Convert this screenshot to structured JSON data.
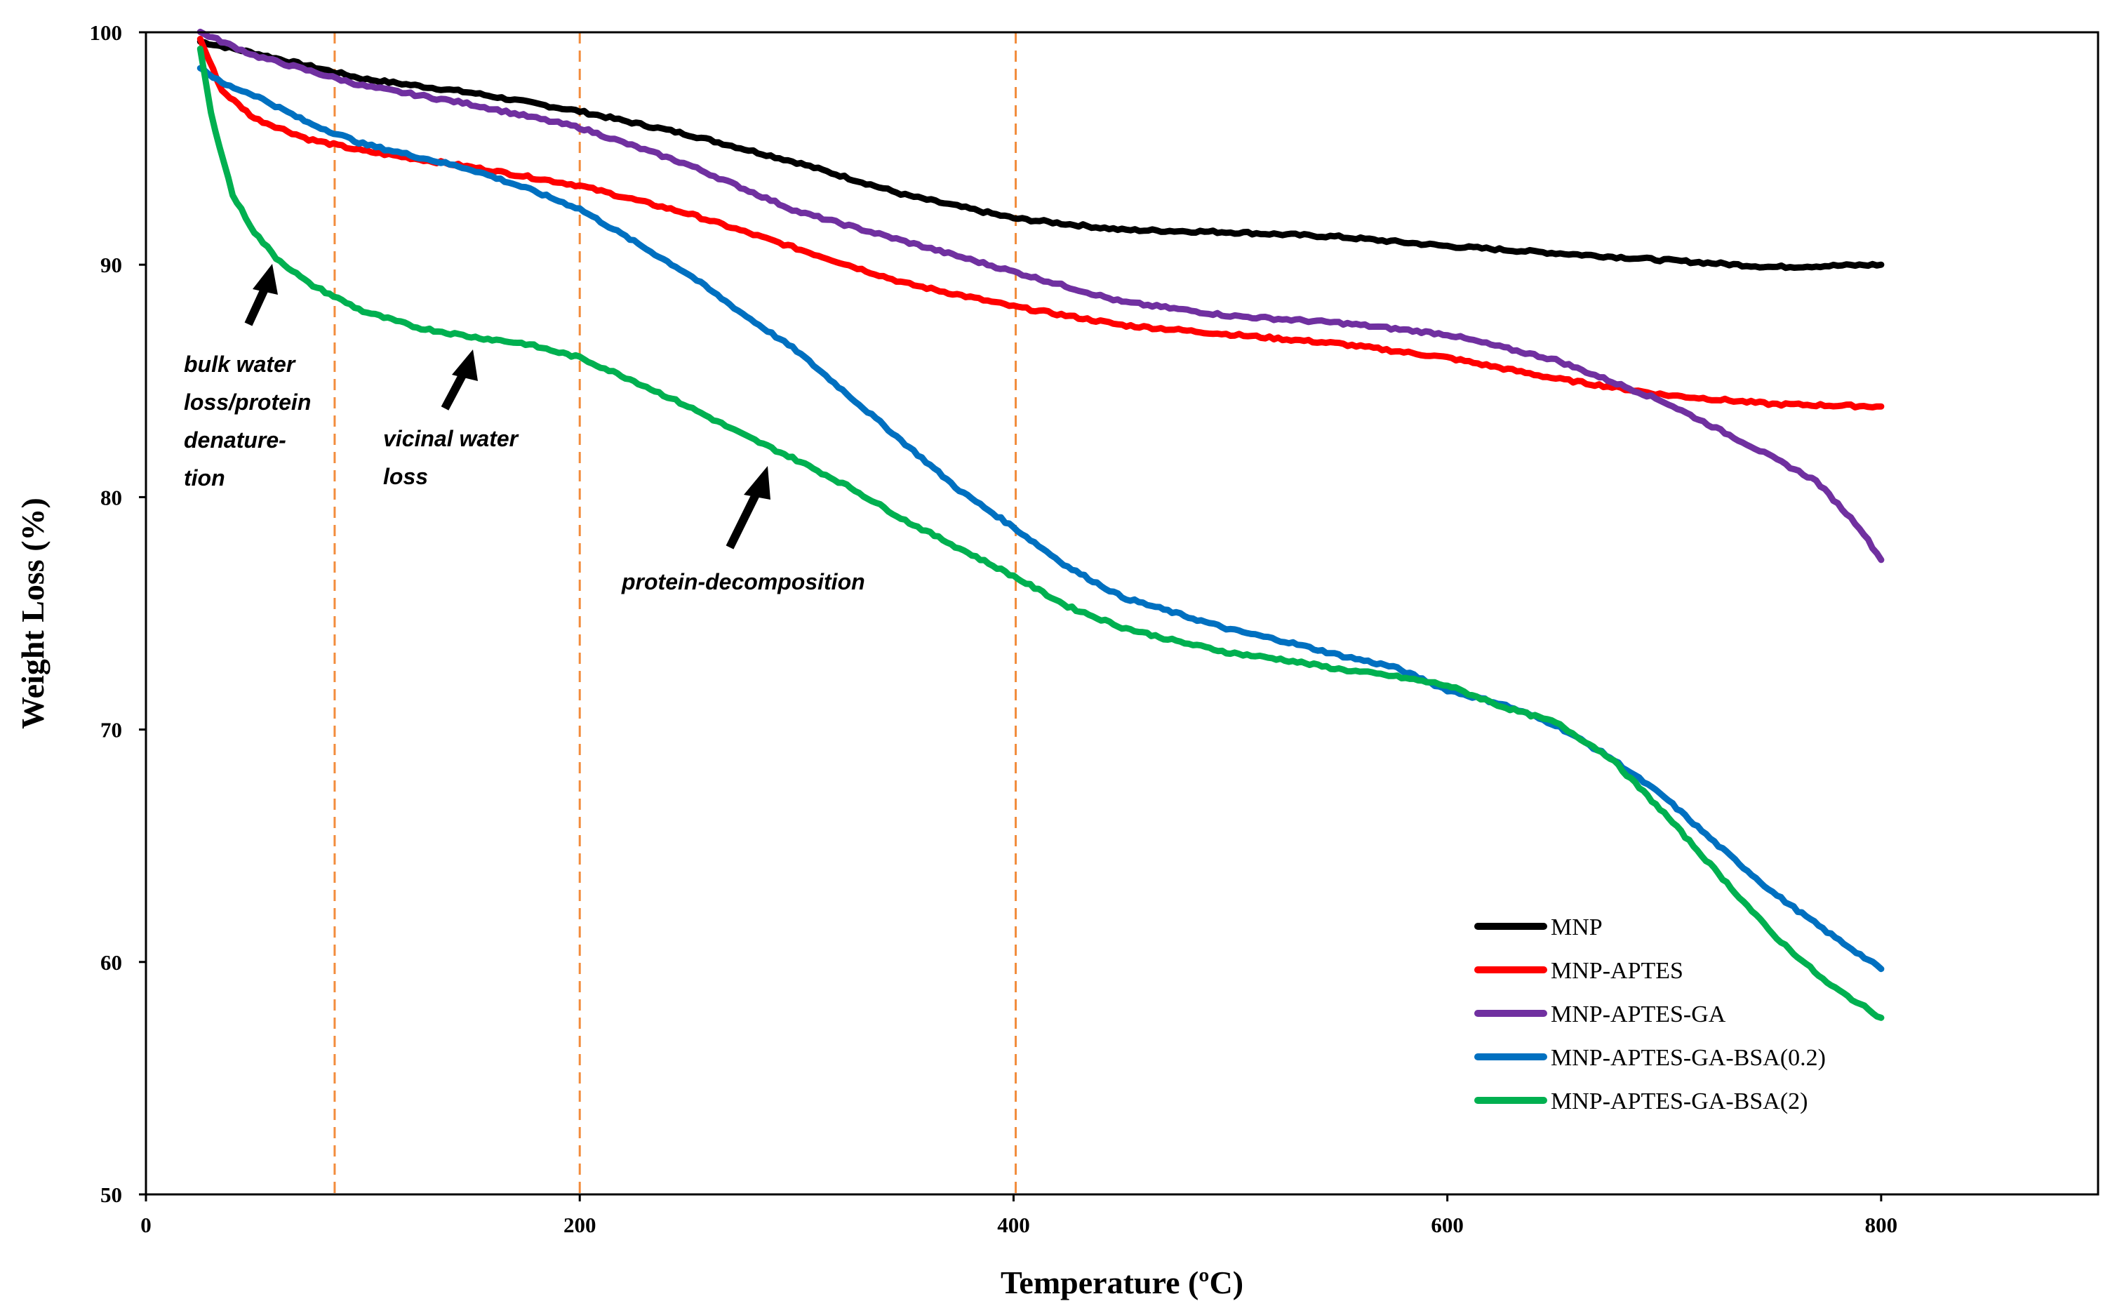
{
  "chart_data": {
    "type": "line",
    "title": "",
    "xlabel": "Temperature (ºC)",
    "ylabel": "Weight Loss (%)",
    "xlim": [
      0,
      900
    ],
    "ylim": [
      50,
      100
    ],
    "xticks": [
      0,
      200,
      400,
      600,
      800
    ],
    "yticks": [
      50,
      60,
      70,
      80,
      90,
      100
    ],
    "xtick_labels": [
      "0",
      "200",
      "400",
      "600",
      "800"
    ],
    "ytick_labels": [
      "50",
      "60",
      "70",
      "80",
      "90",
      "100"
    ],
    "grid": false,
    "legend_position": "bottom-right",
    "reference_lines": [
      {
        "orientation": "vertical",
        "x": 87,
        "style": "dashed",
        "color": "#f28c3c"
      },
      {
        "orientation": "vertical",
        "x": 200,
        "style": "dashed",
        "color": "#f28c3c"
      },
      {
        "orientation": "vertical",
        "x": 401,
        "style": "dashed",
        "color": "#f28c3c"
      }
    ],
    "annotations": [
      {
        "lines": [
          "bulk water",
          "loss/protein",
          "denature-",
          "tion"
        ],
        "arrow_to": [
          57,
          90.5
        ]
      },
      {
        "lines": [
          "vicinal water",
          "loss"
        ],
        "arrow_to": [
          150,
          86.5
        ]
      },
      {
        "lines": [
          "protein-decomposition"
        ],
        "arrow_to": [
          287,
          81.5
        ]
      }
    ],
    "series": [
      {
        "name": "MNP",
        "color": "#000000",
        "x": [
          25,
          50,
          100,
          150,
          200,
          250,
          300,
          350,
          400,
          450,
          500,
          550,
          600,
          650,
          700,
          750,
          800
        ],
        "y": [
          99.6,
          99.1,
          98.0,
          97.4,
          96.6,
          95.6,
          94.4,
          93.0,
          92.0,
          91.5,
          91.4,
          91.2,
          90.8,
          90.5,
          90.2,
          89.9,
          90.0
        ]
      },
      {
        "name": "MNP-APTES",
        "color": "#ff0000",
        "x": [
          25,
          35,
          50,
          75,
          100,
          150,
          200,
          250,
          300,
          350,
          400,
          450,
          500,
          550,
          600,
          650,
          700,
          750,
          800
        ],
        "y": [
          99.7,
          97.5,
          96.3,
          95.4,
          94.9,
          94.2,
          93.4,
          92.2,
          90.7,
          89.2,
          88.2,
          87.4,
          87.0,
          86.6,
          86.0,
          85.1,
          84.4,
          84.0,
          83.9
        ]
      },
      {
        "name": "MNP-APTES-GA",
        "color": "#7030a0",
        "x": [
          25,
          50,
          100,
          150,
          200,
          250,
          300,
          350,
          400,
          450,
          500,
          550,
          600,
          650,
          700,
          740,
          770,
          790,
          800
        ],
        "y": [
          100.0,
          99.0,
          97.7,
          96.9,
          95.9,
          94.3,
          92.3,
          91.0,
          89.7,
          88.4,
          87.8,
          87.5,
          87.0,
          85.9,
          84.1,
          82.2,
          80.7,
          78.7,
          77.3
        ]
      },
      {
        "name": "MNP-APTES-GA-BSA(0.2)",
        "color": "#0070c0",
        "x": [
          25,
          35,
          50,
          75,
          100,
          150,
          175,
          200,
          225,
          250,
          275,
          300,
          325,
          350,
          375,
          400,
          425,
          450,
          475,
          500,
          525,
          550,
          575,
          600,
          625,
          650,
          675,
          700,
          725,
          750,
          775,
          800
        ],
        "y": [
          98.5,
          97.8,
          97.3,
          96.1,
          95.2,
          94.1,
          93.3,
          92.4,
          91.0,
          89.6,
          87.9,
          86.3,
          84.3,
          82.3,
          80.3,
          78.7,
          77.0,
          75.7,
          75.0,
          74.3,
          73.8,
          73.2,
          72.7,
          71.7,
          71.1,
          70.2,
          68.8,
          67.1,
          65.0,
          63.0,
          61.3,
          59.7
        ]
      },
      {
        "name": "MNP-APTES-GA-BSA(2)",
        "color": "#00b050",
        "x": [
          25,
          30,
          40,
          50,
          60,
          75,
          100,
          125,
          150,
          175,
          200,
          225,
          250,
          275,
          300,
          325,
          350,
          375,
          400,
          425,
          450,
          475,
          500,
          525,
          550,
          575,
          600,
          625,
          650,
          675,
          700,
          725,
          750,
          775,
          800
        ],
        "y": [
          99.3,
          96.5,
          93.0,
          91.4,
          90.3,
          89.2,
          88.0,
          87.3,
          86.9,
          86.6,
          86.0,
          85.0,
          83.9,
          82.7,
          81.6,
          80.4,
          79.0,
          77.8,
          76.6,
          75.3,
          74.4,
          73.8,
          73.3,
          73.0,
          72.6,
          72.3,
          71.9,
          71.0,
          70.3,
          68.8,
          66.4,
          63.8,
          61.2,
          59.1,
          57.6
        ]
      }
    ]
  }
}
